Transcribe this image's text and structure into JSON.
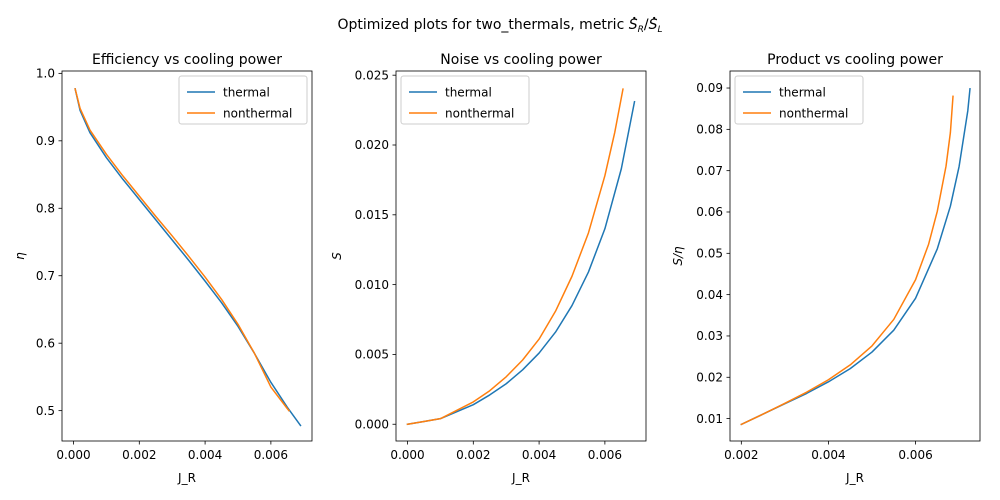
{
  "figure": {
    "suptitle_prefix": "Optimized plots for two_thermals, metric ",
    "suptitle_metric_R": "S",
    "suptitle_metric_R_sub": "R",
    "suptitle_metric_slash": "/",
    "suptitle_metric_L": "S",
    "suptitle_metric_L_sub": "L"
  },
  "colors": {
    "thermal": "#1f77b4",
    "nonthermal": "#ff7f0e"
  },
  "chart_data": [
    {
      "type": "line",
      "title": "Efficiency vs cooling power",
      "xlabel": "J_R",
      "ylabel": "η",
      "xlim": [
        -0.00035,
        0.00725
      ],
      "ylim": [
        0.455,
        1.0035
      ],
      "xticks": [
        0.0,
        0.002,
        0.004,
        0.006
      ],
      "xtick_labels": [
        "0.000",
        "0.002",
        "0.004",
        "0.006"
      ],
      "yticks": [
        0.5,
        0.6,
        0.7,
        0.8,
        0.9,
        1.0
      ],
      "ytick_labels": [
        "0.5",
        "0.6",
        "0.7",
        "0.8",
        "0.9",
        "1.0"
      ],
      "legend_loc": "upper right",
      "series": [
        {
          "name": "thermal",
          "x": [
            5e-05,
            0.0002,
            0.0005,
            0.001,
            0.0015,
            0.002,
            0.0025,
            0.003,
            0.0035,
            0.004,
            0.0045,
            0.005,
            0.0055,
            0.006,
            0.0065,
            0.0069
          ],
          "y": [
            0.977,
            0.945,
            0.912,
            0.875,
            0.843,
            0.813,
            0.783,
            0.753,
            0.723,
            0.692,
            0.66,
            0.625,
            0.585,
            0.542,
            0.505,
            0.478
          ]
        },
        {
          "name": "nonthermal",
          "x": [
            5e-05,
            0.0002,
            0.0005,
            0.001,
            0.0015,
            0.002,
            0.0025,
            0.003,
            0.0035,
            0.004,
            0.0045,
            0.005,
            0.0055,
            0.006,
            0.0065,
            0.00655
          ],
          "y": [
            0.977,
            0.948,
            0.916,
            0.88,
            0.848,
            0.818,
            0.788,
            0.759,
            0.729,
            0.698,
            0.665,
            0.628,
            0.585,
            0.535,
            0.503,
            0.5
          ]
        }
      ]
    },
    {
      "type": "line",
      "title": "Noise vs cooling power",
      "xlabel": "J_R",
      "ylabel": "S",
      "xlim": [
        -0.00035,
        0.00725
      ],
      "ylim": [
        -0.0012,
        0.0253
      ],
      "xticks": [
        0.0,
        0.002,
        0.004,
        0.006
      ],
      "xtick_labels": [
        "0.000",
        "0.002",
        "0.004",
        "0.006"
      ],
      "yticks": [
        0.0,
        0.005,
        0.01,
        0.015,
        0.02,
        0.025
      ],
      "ytick_labels": [
        "0.000",
        "0.005",
        "0.010",
        "0.015",
        "0.020",
        "0.025"
      ],
      "legend_loc": "upper left",
      "series": [
        {
          "name": "thermal",
          "x": [
            0.0,
            0.0005,
            0.001,
            0.0015,
            0.002,
            0.0025,
            0.003,
            0.0035,
            0.004,
            0.0045,
            0.005,
            0.0055,
            0.006,
            0.0065,
            0.0069
          ],
          "y": [
            0.0,
            0.0002,
            0.0004,
            0.0009,
            0.0014,
            0.0021,
            0.0029,
            0.0039,
            0.0051,
            0.0066,
            0.0085,
            0.0109,
            0.014,
            0.0183,
            0.0231
          ]
        },
        {
          "name": "nonthermal",
          "x": [
            0.0,
            0.0005,
            0.001,
            0.0015,
            0.002,
            0.0025,
            0.003,
            0.0035,
            0.004,
            0.0045,
            0.005,
            0.0055,
            0.006,
            0.0063,
            0.00655
          ],
          "y": [
            0.0,
            0.0002,
            0.0004,
            0.001,
            0.0016,
            0.0024,
            0.0034,
            0.0046,
            0.0061,
            0.0081,
            0.0106,
            0.0137,
            0.0178,
            0.0209,
            0.024
          ]
        }
      ]
    },
    {
      "type": "line",
      "title": "Product vs cooling power",
      "xlabel": "J_R",
      "ylabel": "S/η",
      "xlim": [
        0.00174,
        0.00748
      ],
      "ylim": [
        0.00458,
        0.09412
      ],
      "xticks": [
        0.002,
        0.004,
        0.006
      ],
      "xtick_labels": [
        "0.002",
        "0.004",
        "0.006"
      ],
      "yticks": [
        0.01,
        0.02,
        0.03,
        0.04,
        0.05,
        0.06,
        0.07,
        0.08,
        0.09
      ],
      "ytick_labels": [
        "0.01",
        "0.02",
        "0.03",
        "0.04",
        "0.05",
        "0.06",
        "0.07",
        "0.08",
        "0.09"
      ],
      "legend_loc": "upper left",
      "series": [
        {
          "name": "thermal",
          "x": [
            0.002,
            0.0025,
            0.003,
            0.0035,
            0.004,
            0.0045,
            0.005,
            0.0055,
            0.006,
            0.0065,
            0.0068,
            0.007,
            0.0072,
            0.00725
          ],
          "y": [
            0.0086,
            0.0111,
            0.0136,
            0.0161,
            0.0189,
            0.0221,
            0.0261,
            0.0314,
            0.0391,
            0.0511,
            0.0614,
            0.071,
            0.0845,
            0.0898
          ]
        },
        {
          "name": "nonthermal",
          "x": [
            0.002,
            0.0025,
            0.003,
            0.0035,
            0.004,
            0.0045,
            0.005,
            0.0055,
            0.006,
            0.0063,
            0.0065,
            0.0067,
            0.0068,
            0.00686
          ],
          "y": [
            0.0086,
            0.0111,
            0.0137,
            0.0164,
            0.0194,
            0.023,
            0.0276,
            0.034,
            0.0436,
            0.0522,
            0.0602,
            0.0711,
            0.0792,
            0.088
          ]
        }
      ]
    }
  ]
}
